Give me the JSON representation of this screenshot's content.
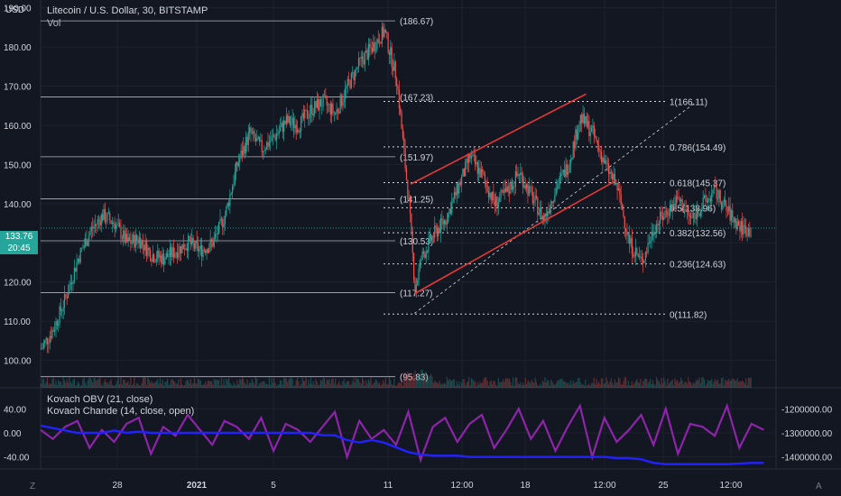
{
  "header": {
    "currency": "USD",
    "symbol_title": "Litecoin / U.S. Dollar, 30, BITSTAMP",
    "volume_label": "Vol"
  },
  "price_badges": {
    "last_price": "133.76",
    "countdown": "20:45"
  },
  "indicators": {
    "obv_label": "Kovach OBV (21, close)",
    "chande_label": "Kovach Chande (14, close, open)"
  },
  "corner_icons": {
    "left": "Z",
    "right": "A"
  },
  "colors": {
    "background": "#131722",
    "grid": "#1e222d",
    "up": "#26a69a",
    "down": "#ef5350",
    "channel": "#e53935",
    "obv_line": "#2222ff",
    "chande_line": "#8e24aa"
  },
  "chart_data": [
    {
      "type": "candlestick",
      "title": "Litecoin / U.S. Dollar, 30, BITSTAMP",
      "xlabel": "",
      "ylabel": "USD",
      "ylim": [
        93,
        192
      ],
      "y_ticks": [
        100,
        110,
        120,
        130,
        140,
        150,
        160,
        170,
        180,
        190
      ],
      "y_tick_labels": [
        "100.00",
        "110.00",
        "120.00",
        "130.00",
        "140.00",
        "150.00",
        "160.00",
        "170.00",
        "180.00",
        "190.00"
      ],
      "x_tick_labels": [
        "28",
        "2021",
        "5",
        "11",
        "12:00",
        "18",
        "12:00",
        "25",
        "12:00"
      ],
      "horizontal_levels": [
        {
          "value": 186.67,
          "label": "(186.67)"
        },
        {
          "value": 167.23,
          "label": "(167.23)"
        },
        {
          "value": 151.97,
          "label": "(151.97)"
        },
        {
          "value": 141.25,
          "label": "(141.25)"
        },
        {
          "value": 130.53,
          "label": "(130.53)"
        },
        {
          "value": 117.27,
          "label": "(117.27)"
        },
        {
          "value": 95.83,
          "label": "(95.83)"
        }
      ],
      "fibonacci_levels": [
        {
          "ratio": "1",
          "value": 166.11,
          "label": "1(166.11)"
        },
        {
          "ratio": "0.786",
          "value": 154.49,
          "label": "0.786(154.49)"
        },
        {
          "ratio": "0.618",
          "value": 145.37,
          "label": "0.618(145.37)"
        },
        {
          "ratio": "0.5",
          "value": 138.96,
          "label": "0.5(138.96)"
        },
        {
          "ratio": "0.382",
          "value": 132.56,
          "label": "0.382(132.56)"
        },
        {
          "ratio": "0.236",
          "value": 124.63,
          "label": "0.236(124.63)"
        },
        {
          "ratio": "0",
          "value": 111.82,
          "label": "0(111.82)"
        }
      ],
      "price_path": [
        [
          0,
          103
        ],
        [
          10,
          108
        ],
        [
          20,
          116
        ],
        [
          30,
          126
        ],
        [
          40,
          133
        ],
        [
          50,
          137
        ],
        [
          60,
          135
        ],
        [
          70,
          130
        ],
        [
          80,
          131
        ],
        [
          90,
          127
        ],
        [
          100,
          126
        ],
        [
          110,
          128
        ],
        [
          120,
          130
        ],
        [
          130,
          128
        ],
        [
          140,
          130
        ],
        [
          150,
          137
        ],
        [
          160,
          150
        ],
        [
          170,
          158
        ],
        [
          180,
          154
        ],
        [
          190,
          157
        ],
        [
          200,
          161
        ],
        [
          210,
          160
        ],
        [
          220,
          164
        ],
        [
          230,
          166
        ],
        [
          240,
          163
        ],
        [
          250,
          170
        ],
        [
          260,
          176
        ],
        [
          270,
          180
        ],
        [
          280,
          184
        ],
        [
          290,
          172
        ],
        [
          300,
          140
        ],
        [
          305,
          118
        ],
        [
          310,
          126
        ],
        [
          320,
          132
        ],
        [
          330,
          136
        ],
        [
          340,
          144
        ],
        [
          350,
          152
        ],
        [
          360,
          147
        ],
        [
          370,
          140
        ],
        [
          380,
          143
        ],
        [
          390,
          148
        ],
        [
          400,
          142
        ],
        [
          410,
          136
        ],
        [
          420,
          144
        ],
        [
          430,
          150
        ],
        [
          440,
          162
        ],
        [
          450,
          158
        ],
        [
          460,
          150
        ],
        [
          470,
          144
        ],
        [
          480,
          130
        ],
        [
          490,
          125
        ],
        [
          500,
          134
        ],
        [
          510,
          138
        ],
        [
          520,
          141
        ],
        [
          530,
          136
        ],
        [
          540,
          140
        ],
        [
          550,
          143
        ],
        [
          560,
          138
        ],
        [
          570,
          134
        ],
        [
          580,
          133
        ]
      ],
      "channel_lines": [
        {
          "from": [
            302,
            145
          ],
          "to": [
            445,
            168
          ]
        },
        {
          "from": [
            305,
            117
          ],
          "to": [
            470,
            146
          ]
        }
      ],
      "fib_trend_line": {
        "from": [
          305,
          112
        ],
        "to": [
          535,
          166
        ]
      },
      "last_price": 133.76
    },
    {
      "type": "line",
      "title": "Kovach Chande (14, close, open)",
      "ylim": [
        -60,
        60
      ],
      "y_ticks": [
        40,
        0,
        -40
      ],
      "y_tick_labels": [
        "40.00",
        "0.00",
        "-40.00"
      ],
      "series": [
        {
          "name": "Kovach Chande (14, close, open)",
          "values": [
            5,
            -10,
            10,
            20,
            -25,
            5,
            -15,
            15,
            25,
            -35,
            10,
            -5,
            30,
            5,
            -20,
            20,
            10,
            -10,
            25,
            -30,
            15,
            5,
            -15,
            10,
            35,
            -40,
            20,
            -10,
            5,
            -20,
            35,
            -45,
            10,
            25,
            -15,
            15,
            30,
            -25,
            5,
            40,
            -10,
            20,
            -30,
            10,
            45,
            -40,
            25,
            -15,
            5,
            30,
            -20,
            40,
            -35,
            15,
            10,
            -5,
            45,
            -25,
            15,
            5
          ]
        }
      ]
    },
    {
      "type": "line",
      "title": "Kovach OBV (21, close)",
      "ylim": [
        -1450000,
        -1150000
      ],
      "y_ticks": [
        -1200000,
        -1300000,
        -1400000
      ],
      "y_tick_labels": [
        "-1200000.00",
        "-1300000.00",
        "-1400000.00"
      ],
      "series": [
        {
          "name": "Kovach OBV (21, close)",
          "values": [
            -1270000,
            -1280000,
            -1290000,
            -1300000,
            -1300000,
            -1300000,
            -1290000,
            -1300000,
            -1295000,
            -1300000,
            -1300000,
            -1300000,
            -1300000,
            -1300000,
            -1300000,
            -1300000,
            -1300000,
            -1300000,
            -1300000,
            -1300000,
            -1300000,
            -1300000,
            -1300000,
            -1310000,
            -1310000,
            -1330000,
            -1340000,
            -1330000,
            -1340000,
            -1360000,
            -1380000,
            -1390000,
            -1395000,
            -1395000,
            -1395000,
            -1400000,
            -1400000,
            -1400000,
            -1400000,
            -1400000,
            -1400000,
            -1400000,
            -1400000,
            -1400000,
            -1400000,
            -1400000,
            -1400000,
            -1405000,
            -1405000,
            -1410000,
            -1425000,
            -1430000,
            -1430000,
            -1430000,
            -1430000,
            -1430000,
            -1430000,
            -1428000,
            -1425000,
            -1425000
          ]
        }
      ]
    }
  ]
}
